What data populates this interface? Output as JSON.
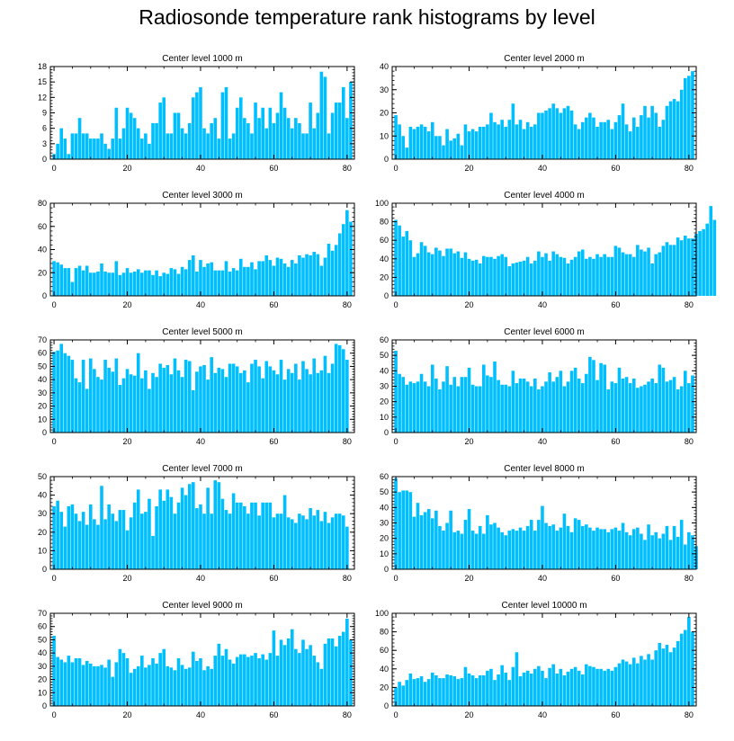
{
  "title": "Radiosonde temperature rank histograms by level",
  "bar_color": "#00bfff",
  "chart_data": [
    {
      "type": "bar",
      "title": "Center level 1000 m",
      "xlabel": "",
      "ylabel": "",
      "x_start": 0,
      "xlim": [
        -1,
        82
      ],
      "ylim": [
        0,
        18
      ],
      "xticks": [
        0,
        20,
        40,
        60,
        80
      ],
      "yticks": [
        0,
        3,
        6,
        9,
        12,
        15,
        18
      ],
      "values": [
        1,
        3,
        6,
        4,
        1,
        5,
        5,
        8,
        5,
        5,
        4,
        4,
        4,
        5,
        3,
        2,
        4,
        10,
        4,
        6,
        10,
        9,
        8,
        6,
        4,
        5,
        3,
        7,
        7,
        11,
        12,
        5,
        5,
        9,
        9,
        6,
        5,
        7,
        12,
        13,
        14,
        6,
        5,
        7,
        8,
        4,
        13,
        14,
        4,
        5,
        10,
        12,
        8,
        7,
        5,
        11,
        8,
        10,
        6,
        10,
        7,
        9,
        13,
        10,
        8,
        6,
        8,
        7,
        5,
        5,
        11,
        6,
        9,
        17,
        16,
        5,
        9,
        11,
        11,
        14,
        8,
        15
      ]
    },
    {
      "type": "bar",
      "title": "Center level 2000 m",
      "xlabel": "",
      "ylabel": "",
      "x_start": 0,
      "xlim": [
        -1,
        82
      ],
      "ylim": [
        0,
        40
      ],
      "xticks": [
        0,
        20,
        40,
        60,
        80
      ],
      "yticks": [
        0,
        10,
        20,
        30,
        40
      ],
      "values": [
        19,
        15,
        10,
        5,
        14,
        13,
        14,
        15,
        14,
        12,
        16,
        10,
        10,
        6,
        13,
        8,
        9,
        11,
        6,
        15,
        12,
        13,
        12,
        14,
        14,
        15,
        20,
        16,
        15,
        17,
        14,
        17,
        24,
        15,
        17,
        13,
        16,
        14,
        15,
        20,
        20,
        21,
        22,
        24,
        22,
        20,
        22,
        23,
        21,
        15,
        13,
        16,
        18,
        20,
        18,
        14,
        16,
        16,
        17,
        13,
        16,
        19,
        24,
        15,
        12,
        18,
        14,
        19,
        23,
        18,
        23,
        20,
        14,
        17,
        23,
        25,
        26,
        25,
        30,
        35,
        36,
        38
      ]
    },
    {
      "type": "bar",
      "title": "Center level 3000 m",
      "xlabel": "",
      "ylabel": "",
      "x_start": 0,
      "xlim": [
        -1,
        82
      ],
      "ylim": [
        0,
        80
      ],
      "xticks": [
        0,
        20,
        40,
        60,
        80
      ],
      "yticks": [
        0,
        20,
        40,
        60,
        80
      ],
      "values": [
        30,
        29,
        27,
        24,
        24,
        12,
        24,
        26,
        22,
        26,
        20,
        20,
        21,
        28,
        21,
        20,
        20,
        30,
        18,
        20,
        24,
        20,
        21,
        23,
        20,
        22,
        22,
        18,
        22,
        17,
        20,
        19,
        24,
        23,
        19,
        25,
        23,
        31,
        35,
        21,
        31,
        25,
        28,
        29,
        22,
        22,
        22,
        30,
        21,
        24,
        22,
        32,
        25,
        25,
        29,
        23,
        30,
        30,
        35,
        31,
        26,
        33,
        32,
        28,
        25,
        31,
        28,
        35,
        33,
        36,
        35,
        38,
        36,
        26,
        33,
        45,
        39,
        44,
        54,
        62,
        74,
        64
      ]
    },
    {
      "type": "bar",
      "title": "Center level 4000 m",
      "xlabel": "",
      "ylabel": "",
      "x_start": 0,
      "xlim": [
        -1,
        82
      ],
      "ylim": [
        0,
        100
      ],
      "xticks": [
        0,
        20,
        40,
        60,
        80
      ],
      "yticks": [
        0,
        20,
        40,
        60,
        80,
        100
      ],
      "values": [
        82,
        76,
        64,
        70,
        60,
        42,
        46,
        58,
        54,
        47,
        45,
        52,
        49,
        43,
        51,
        51,
        46,
        48,
        41,
        47,
        40,
        38,
        39,
        35,
        43,
        42,
        42,
        40,
        43,
        45,
        42,
        32,
        35,
        36,
        37,
        38,
        42,
        35,
        38,
        48,
        42,
        46,
        38,
        48,
        45,
        42,
        41,
        35,
        39,
        42,
        48,
        50,
        40,
        42,
        40,
        45,
        42,
        45,
        42,
        42,
        54,
        52,
        47,
        45,
        45,
        42,
        55,
        50,
        48,
        52,
        35,
        45,
        47,
        54,
        58,
        55,
        55,
        63,
        60,
        65,
        62,
        62,
        67,
        70,
        72,
        78,
        97,
        82
      ]
    },
    {
      "type": "bar",
      "title": "Center level 5000 m",
      "xlabel": "",
      "ylabel": "",
      "x_start": 0,
      "xlim": [
        -1,
        82
      ],
      "ylim": [
        0,
        70
      ],
      "xticks": [
        0,
        20,
        40,
        60,
        80
      ],
      "yticks": [
        0,
        10,
        20,
        30,
        40,
        50,
        60,
        70
      ],
      "values": [
        61,
        62,
        67,
        60,
        58,
        55,
        41,
        38,
        55,
        33,
        56,
        48,
        42,
        40,
        55,
        49,
        46,
        56,
        36,
        41,
        48,
        44,
        43,
        60,
        41,
        47,
        33,
        45,
        42,
        52,
        49,
        51,
        44,
        56,
        47,
        42,
        55,
        54,
        32,
        46,
        50,
        51,
        40,
        57,
        45,
        49,
        48,
        42,
        52,
        52,
        50,
        45,
        47,
        38,
        52,
        55,
        50,
        41,
        54,
        50,
        47,
        44,
        55,
        40,
        48,
        45,
        52,
        40,
        54,
        48,
        44,
        56,
        45,
        47,
        58,
        45,
        52,
        67,
        66,
        63,
        55
      ]
    },
    {
      "type": "bar",
      "title": "Center level 6000 m",
      "xlabel": "",
      "ylabel": "",
      "x_start": 0,
      "xlim": [
        -1,
        82
      ],
      "ylim": [
        0,
        60
      ],
      "xticks": [
        0,
        20,
        40,
        60,
        80
      ],
      "yticks": [
        0,
        10,
        20,
        30,
        40,
        50,
        60
      ],
      "values": [
        53,
        38,
        36,
        31,
        33,
        32,
        33,
        38,
        33,
        30,
        44,
        35,
        28,
        33,
        43,
        31,
        36,
        30,
        36,
        36,
        42,
        31,
        30,
        30,
        44,
        37,
        36,
        46,
        34,
        31,
        31,
        30,
        40,
        32,
        35,
        35,
        33,
        30,
        35,
        28,
        30,
        33,
        39,
        33,
        36,
        40,
        30,
        33,
        40,
        42,
        35,
        32,
        38,
        49,
        47,
        34,
        45,
        44,
        28,
        33,
        32,
        42,
        35,
        36,
        32,
        35,
        29,
        30,
        31,
        33,
        35,
        32,
        44,
        42,
        33,
        34,
        36,
        28,
        30,
        40,
        32,
        37
      ]
    },
    {
      "type": "bar",
      "title": "Center level 7000 m",
      "xlabel": "",
      "ylabel": "",
      "x_start": 0,
      "xlim": [
        -1,
        82
      ],
      "ylim": [
        0,
        50
      ],
      "xticks": [
        0,
        20,
        40,
        60,
        80
      ],
      "yticks": [
        0,
        10,
        20,
        30,
        40,
        50
      ],
      "values": [
        34,
        37,
        31,
        23,
        34,
        35,
        30,
        26,
        31,
        24,
        35,
        27,
        24,
        45,
        27,
        35,
        30,
        26,
        32,
        32,
        21,
        28,
        36,
        43,
        30,
        31,
        38,
        18,
        34,
        43,
        37,
        43,
        39,
        30,
        36,
        44,
        40,
        46,
        47,
        33,
        35,
        30,
        44,
        30,
        48,
        47,
        38,
        32,
        30,
        41,
        36,
        36,
        34,
        30,
        36,
        36,
        29,
        36,
        36,
        36,
        28,
        30,
        30,
        40,
        28,
        27,
        25,
        30,
        29,
        27,
        33,
        29,
        32,
        26,
        31,
        25,
        28,
        30,
        30,
        29,
        23
      ]
    },
    {
      "type": "bar",
      "title": "Center level 8000 m",
      "xlabel": "",
      "ylabel": "",
      "x_start": 0,
      "xlim": [
        -1,
        82
      ],
      "ylim": [
        0,
        60
      ],
      "xticks": [
        0,
        20,
        40,
        60,
        80
      ],
      "yticks": [
        0,
        10,
        20,
        30,
        40,
        50,
        60
      ],
      "values": [
        59,
        50,
        51,
        51,
        50,
        34,
        43,
        35,
        37,
        39,
        33,
        38,
        28,
        25,
        30,
        38,
        24,
        25,
        23,
        32,
        39,
        25,
        23,
        28,
        23,
        35,
        29,
        30,
        27,
        24,
        22,
        25,
        26,
        25,
        27,
        25,
        28,
        32,
        25,
        32,
        41,
        30,
        28,
        29,
        25,
        27,
        36,
        28,
        24,
        33,
        32,
        28,
        29,
        27,
        25,
        27,
        26,
        26,
        24,
        26,
        27,
        25,
        30,
        24,
        22,
        26,
        27,
        23,
        19,
        29,
        22,
        24,
        20,
        23,
        28,
        19,
        28,
        21,
        32,
        16,
        24,
        22,
        15
      ]
    },
    {
      "type": "bar",
      "title": "Center level 9000 m",
      "xlabel": "",
      "ylabel": "",
      "x_start": 0,
      "xlim": [
        -1,
        82
      ],
      "ylim": [
        0,
        70
      ],
      "xticks": [
        0,
        20,
        40,
        60,
        80
      ],
      "yticks": [
        0,
        10,
        20,
        30,
        40,
        50,
        60,
        70
      ],
      "values": [
        53,
        37,
        35,
        33,
        38,
        33,
        36,
        36,
        31,
        34,
        32,
        30,
        30,
        31,
        29,
        35,
        22,
        33,
        43,
        40,
        36,
        25,
        28,
        30,
        38,
        29,
        31,
        36,
        32,
        40,
        43,
        30,
        29,
        27,
        36,
        31,
        28,
        29,
        41,
        34,
        36,
        27,
        30,
        28,
        38,
        47,
        38,
        43,
        35,
        32,
        37,
        39,
        39,
        37,
        38,
        40,
        36,
        39,
        35,
        40,
        57,
        38,
        50,
        46,
        51,
        58,
        43,
        40,
        50,
        43,
        46,
        38,
        33,
        28,
        47,
        51,
        51,
        45,
        53,
        56,
        66,
        50
      ]
    },
    {
      "type": "bar",
      "title": "Center level 10000 m",
      "xlabel": "",
      "ylabel": "",
      "x_start": 0,
      "xlim": [
        -1,
        82
      ],
      "ylim": [
        0,
        100
      ],
      "xticks": [
        0,
        20,
        40,
        60,
        80
      ],
      "yticks": [
        0,
        20,
        40,
        60,
        80,
        100
      ],
      "values": [
        20,
        26,
        22,
        28,
        35,
        29,
        30,
        32,
        26,
        29,
        36,
        33,
        30,
        30,
        34,
        33,
        32,
        29,
        30,
        42,
        35,
        33,
        30,
        33,
        33,
        38,
        40,
        28,
        34,
        44,
        36,
        28,
        42,
        58,
        32,
        36,
        38,
        35,
        40,
        43,
        38,
        30,
        41,
        45,
        35,
        40,
        33,
        37,
        40,
        42,
        38,
        34,
        45,
        43,
        42,
        40,
        40,
        38,
        40,
        38,
        42,
        46,
        50,
        48,
        45,
        52,
        46,
        54,
        50,
        56,
        50,
        60,
        68,
        62,
        66,
        58,
        63,
        70,
        78,
        82,
        96,
        80
      ]
    }
  ]
}
